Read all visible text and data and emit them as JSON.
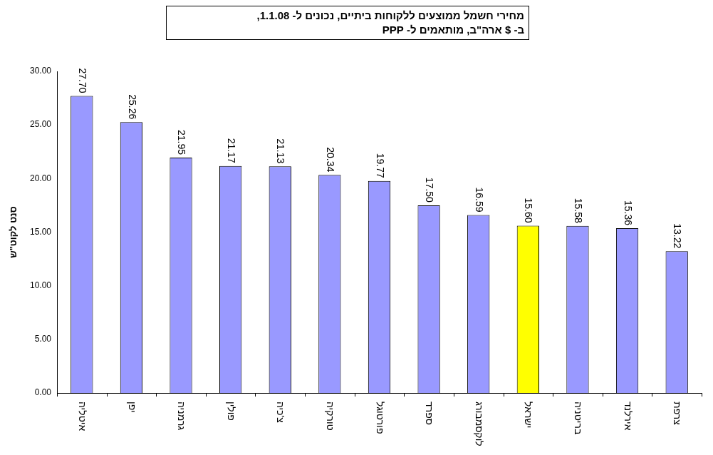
{
  "chart_data": {
    "type": "bar",
    "title": "מחירי חשמל ממוצעים ללקוחות ביתיים, נכונים ל- 1.1.08,\nב- $ ארה\"ב, מותאמים ל- PPP",
    "ylabel": "סנט לקוט\"ש",
    "categories": [
      "איטליה",
      "יפן",
      "גרמניה",
      "פולין",
      "צ'כיה",
      "טורקיה",
      "פורטוגל",
      "ספרד",
      "לוקסמבורג",
      "ישראל",
      "בריטניה",
      "אירלנד",
      "צרפת"
    ],
    "values": [
      27.7,
      25.26,
      21.95,
      21.17,
      21.13,
      20.34,
      19.77,
      17.5,
      16.59,
      15.6,
      15.58,
      15.36,
      13.22
    ],
    "colors": [
      "#9999ff",
      "#9999ff",
      "#9999ff",
      "#9999ff",
      "#9999ff",
      "#9999ff",
      "#9999ff",
      "#9999ff",
      "#9999ff",
      "#ffff00",
      "#9999ff",
      "#9999ff",
      "#9999ff"
    ],
    "value_labels": [
      "27.70",
      "25.26",
      "21.95",
      "21.17",
      "21.13",
      "20.34",
      "19.77",
      "17.50",
      "16.59",
      "15.60",
      "15.58",
      "15.36",
      "13.22"
    ],
    "ylim": [
      0,
      30
    ],
    "yticks": [
      {
        "value": 0,
        "label": "0.00"
      },
      {
        "value": 5,
        "label": "5.00"
      },
      {
        "value": 10,
        "label": "10.00"
      },
      {
        "value": 15,
        "label": "15.00"
      },
      {
        "value": 20,
        "label": "20.00"
      },
      {
        "value": 25,
        "label": "25.00"
      },
      {
        "value": 30,
        "label": "30.00"
      }
    ],
    "grid": false,
    "legend": false
  }
}
